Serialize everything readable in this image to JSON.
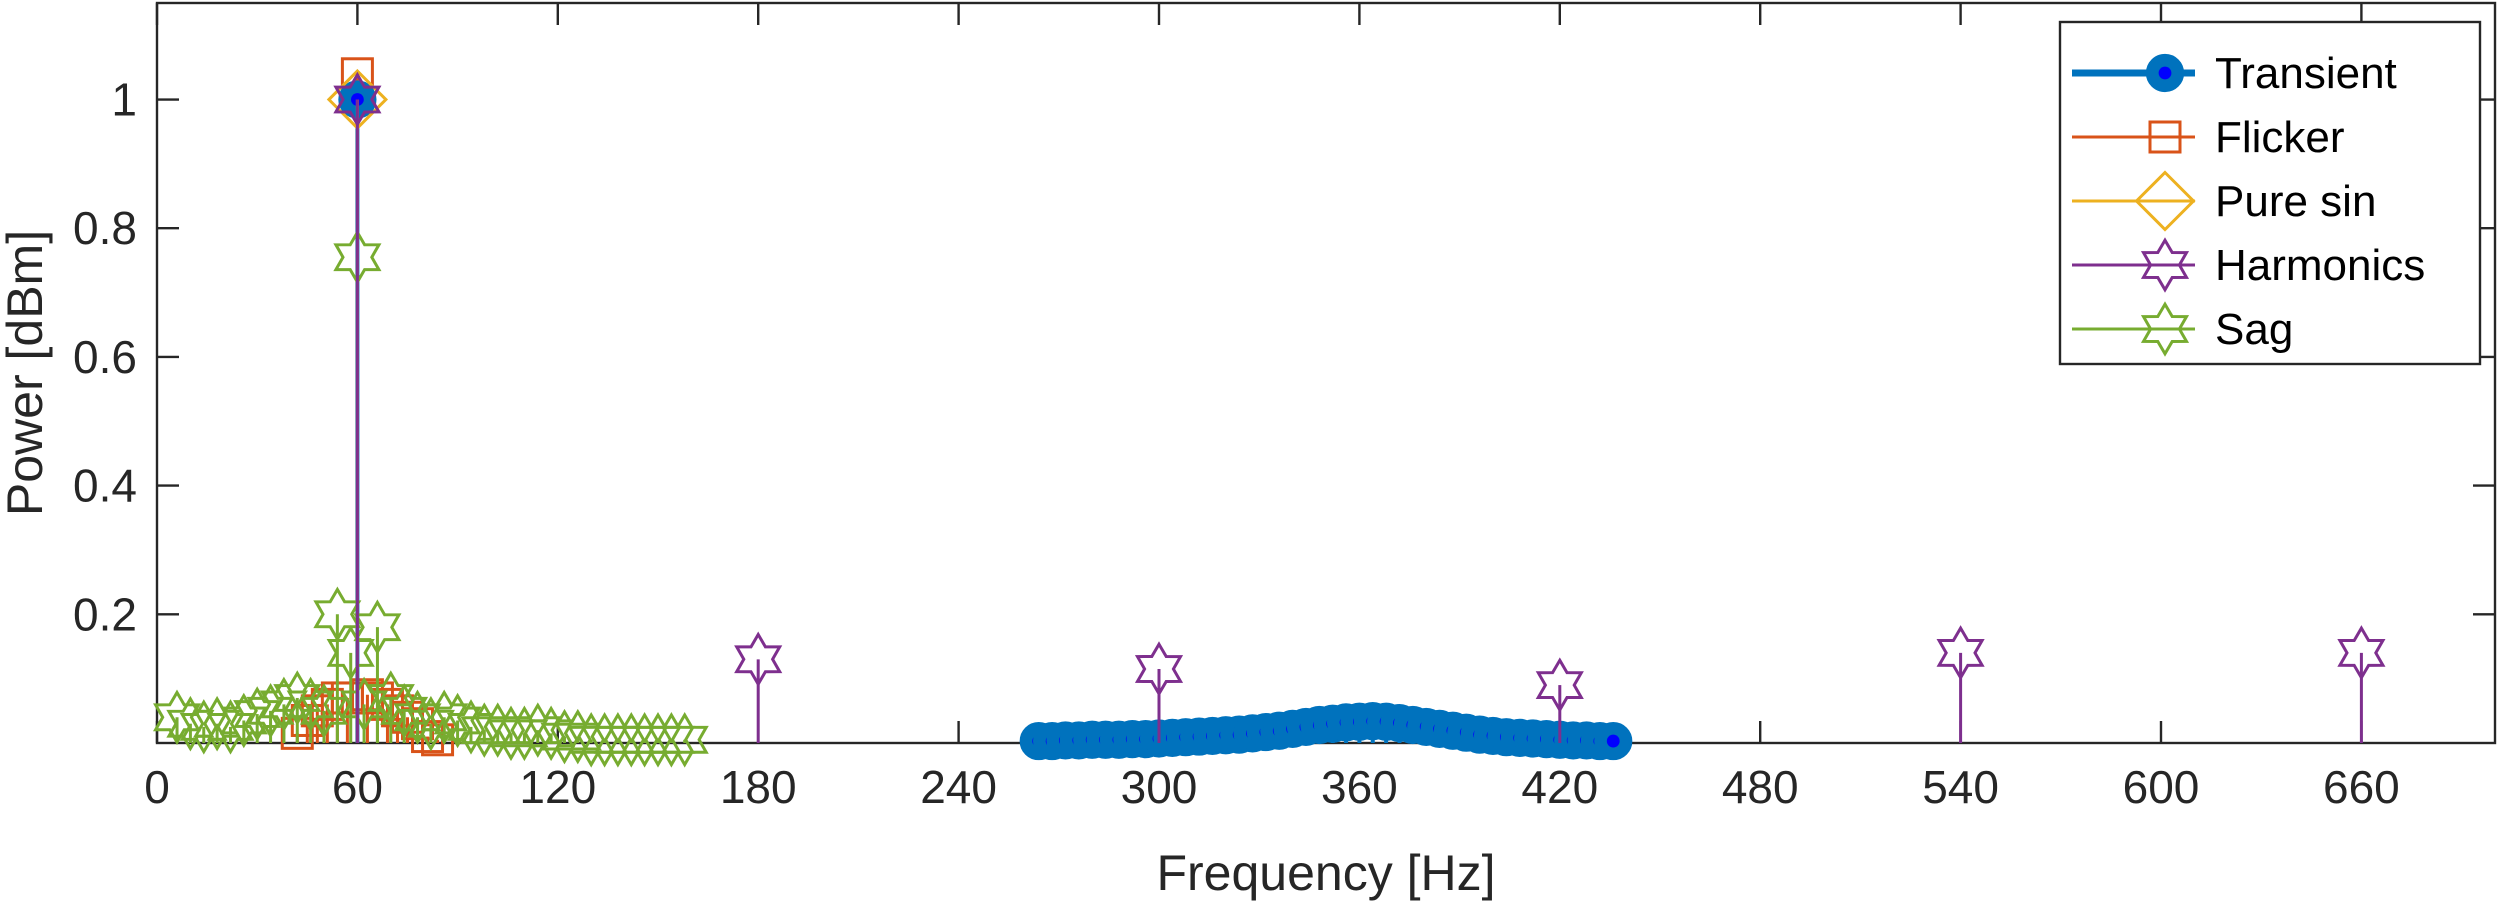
{
  "chart_data": {
    "type": "stem",
    "xlabel": "Frequency [Hz]",
    "ylabel": "Power [dBm]",
    "xlim": [
      0,
      700
    ],
    "ylim": [
      0,
      1.15
    ],
    "xticks": [
      0,
      60,
      120,
      180,
      240,
      300,
      360,
      420,
      480,
      540,
      600,
      660
    ],
    "yticks": [
      0.2,
      0.4,
      0.6,
      0.8,
      1
    ],
    "ytick_labels": [
      "0.2",
      "0.4",
      "0.6",
      "0.8",
      "1"
    ],
    "grid": false,
    "legend_position": "top-right",
    "series": [
      {
        "name": "Transient",
        "color": "#0072BD",
        "marker": "filled-circle",
        "x": [
          60,
          264,
          268,
          272,
          276,
          280,
          284,
          288,
          292,
          296,
          300,
          304,
          308,
          312,
          316,
          320,
          324,
          328,
          332,
          336,
          340,
          344,
          348,
          352,
          356,
          360,
          364,
          368,
          372,
          376,
          380,
          384,
          388,
          392,
          396,
          400,
          404,
          408,
          412,
          416,
          420,
          424,
          428,
          432,
          436
        ],
        "y": [
          1.0,
          0.003,
          0.003,
          0.004,
          0.004,
          0.005,
          0.005,
          0.005,
          0.006,
          0.006,
          0.007,
          0.008,
          0.009,
          0.01,
          0.011,
          0.012,
          0.013,
          0.015,
          0.017,
          0.019,
          0.022,
          0.025,
          0.028,
          0.03,
          0.032,
          0.033,
          0.034,
          0.033,
          0.031,
          0.028,
          0.025,
          0.022,
          0.019,
          0.016,
          0.013,
          0.011,
          0.009,
          0.008,
          0.007,
          0.006,
          0.005,
          0.004,
          0.004,
          0.003,
          0.003
        ]
      },
      {
        "name": "Flicker",
        "color": "#D95319",
        "marker": "square",
        "x": [
          42,
          45,
          48,
          51,
          54,
          57,
          60,
          63,
          66,
          69,
          72,
          75,
          78,
          81,
          84
        ],
        "y": [
          0.015,
          0.035,
          0.05,
          0.06,
          0.07,
          0.07,
          1.04,
          0.075,
          0.07,
          0.06,
          0.05,
          0.04,
          0.03,
          0.01,
          0.005
        ]
      },
      {
        "name": "Pure sin",
        "color": "#EDB120",
        "marker": "diamond",
        "x": [
          60
        ],
        "y": [
          1.0
        ]
      },
      {
        "name": "Harmonics",
        "color": "#7E2F8E",
        "marker": "hexagram",
        "x": [
          60,
          180,
          300,
          420,
          540,
          660
        ],
        "y": [
          1.0,
          0.13,
          0.115,
          0.09,
          0.14,
          0.14
        ]
      },
      {
        "name": "Sag",
        "color": "#77AC30",
        "marker": "hexagram",
        "x": [
          6,
          10,
          14,
          18,
          22,
          26,
          30,
          34,
          38,
          42,
          46,
          50,
          54,
          58,
          60,
          62,
          66,
          70,
          74,
          78,
          82,
          86,
          90,
          94,
          98,
          102,
          106,
          110,
          114,
          118,
          122,
          126,
          130,
          134,
          138,
          142,
          146,
          150,
          154,
          158
        ],
        "y": [
          0.04,
          0.03,
          0.025,
          0.03,
          0.025,
          0.035,
          0.045,
          0.05,
          0.06,
          0.07,
          0.06,
          0.05,
          0.2,
          0.14,
          0.755,
          0.06,
          0.18,
          0.07,
          0.05,
          0.04,
          0.03,
          0.04,
          0.035,
          0.025,
          0.02,
          0.02,
          0.015,
          0.015,
          0.02,
          0.015,
          0.01,
          0.01,
          0.005,
          0.005,
          0.005,
          0.005,
          0.005,
          0.005,
          0.005,
          0.005
        ]
      }
    ]
  }
}
